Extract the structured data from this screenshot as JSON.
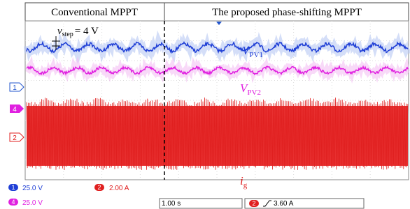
{
  "header": {
    "left": "Conventional MPPT",
    "right": "The proposed phase-shifting MPPT"
  },
  "annotations": {
    "v_step": {
      "symbol": "v",
      "sub": "step",
      "rest": "= 4 V"
    },
    "v_pv1": {
      "symbol": "V",
      "sub": "PV1"
    },
    "v_pv2": {
      "symbol": "V",
      "sub": "PV2"
    },
    "i_g": {
      "symbol": "i",
      "sub": "g"
    }
  },
  "channel_markers": [
    "1",
    "4",
    "2"
  ],
  "status": {
    "ch1": {
      "id": "1",
      "scale": "25.0 V"
    },
    "ch2": {
      "id": "2",
      "scale": "2.00 A"
    },
    "ch4": {
      "id": "4",
      "scale": "25.0 V"
    },
    "timebase": "1.00 s",
    "trigger": {
      "id": "2",
      "level": "3.60 A"
    }
  }
}
